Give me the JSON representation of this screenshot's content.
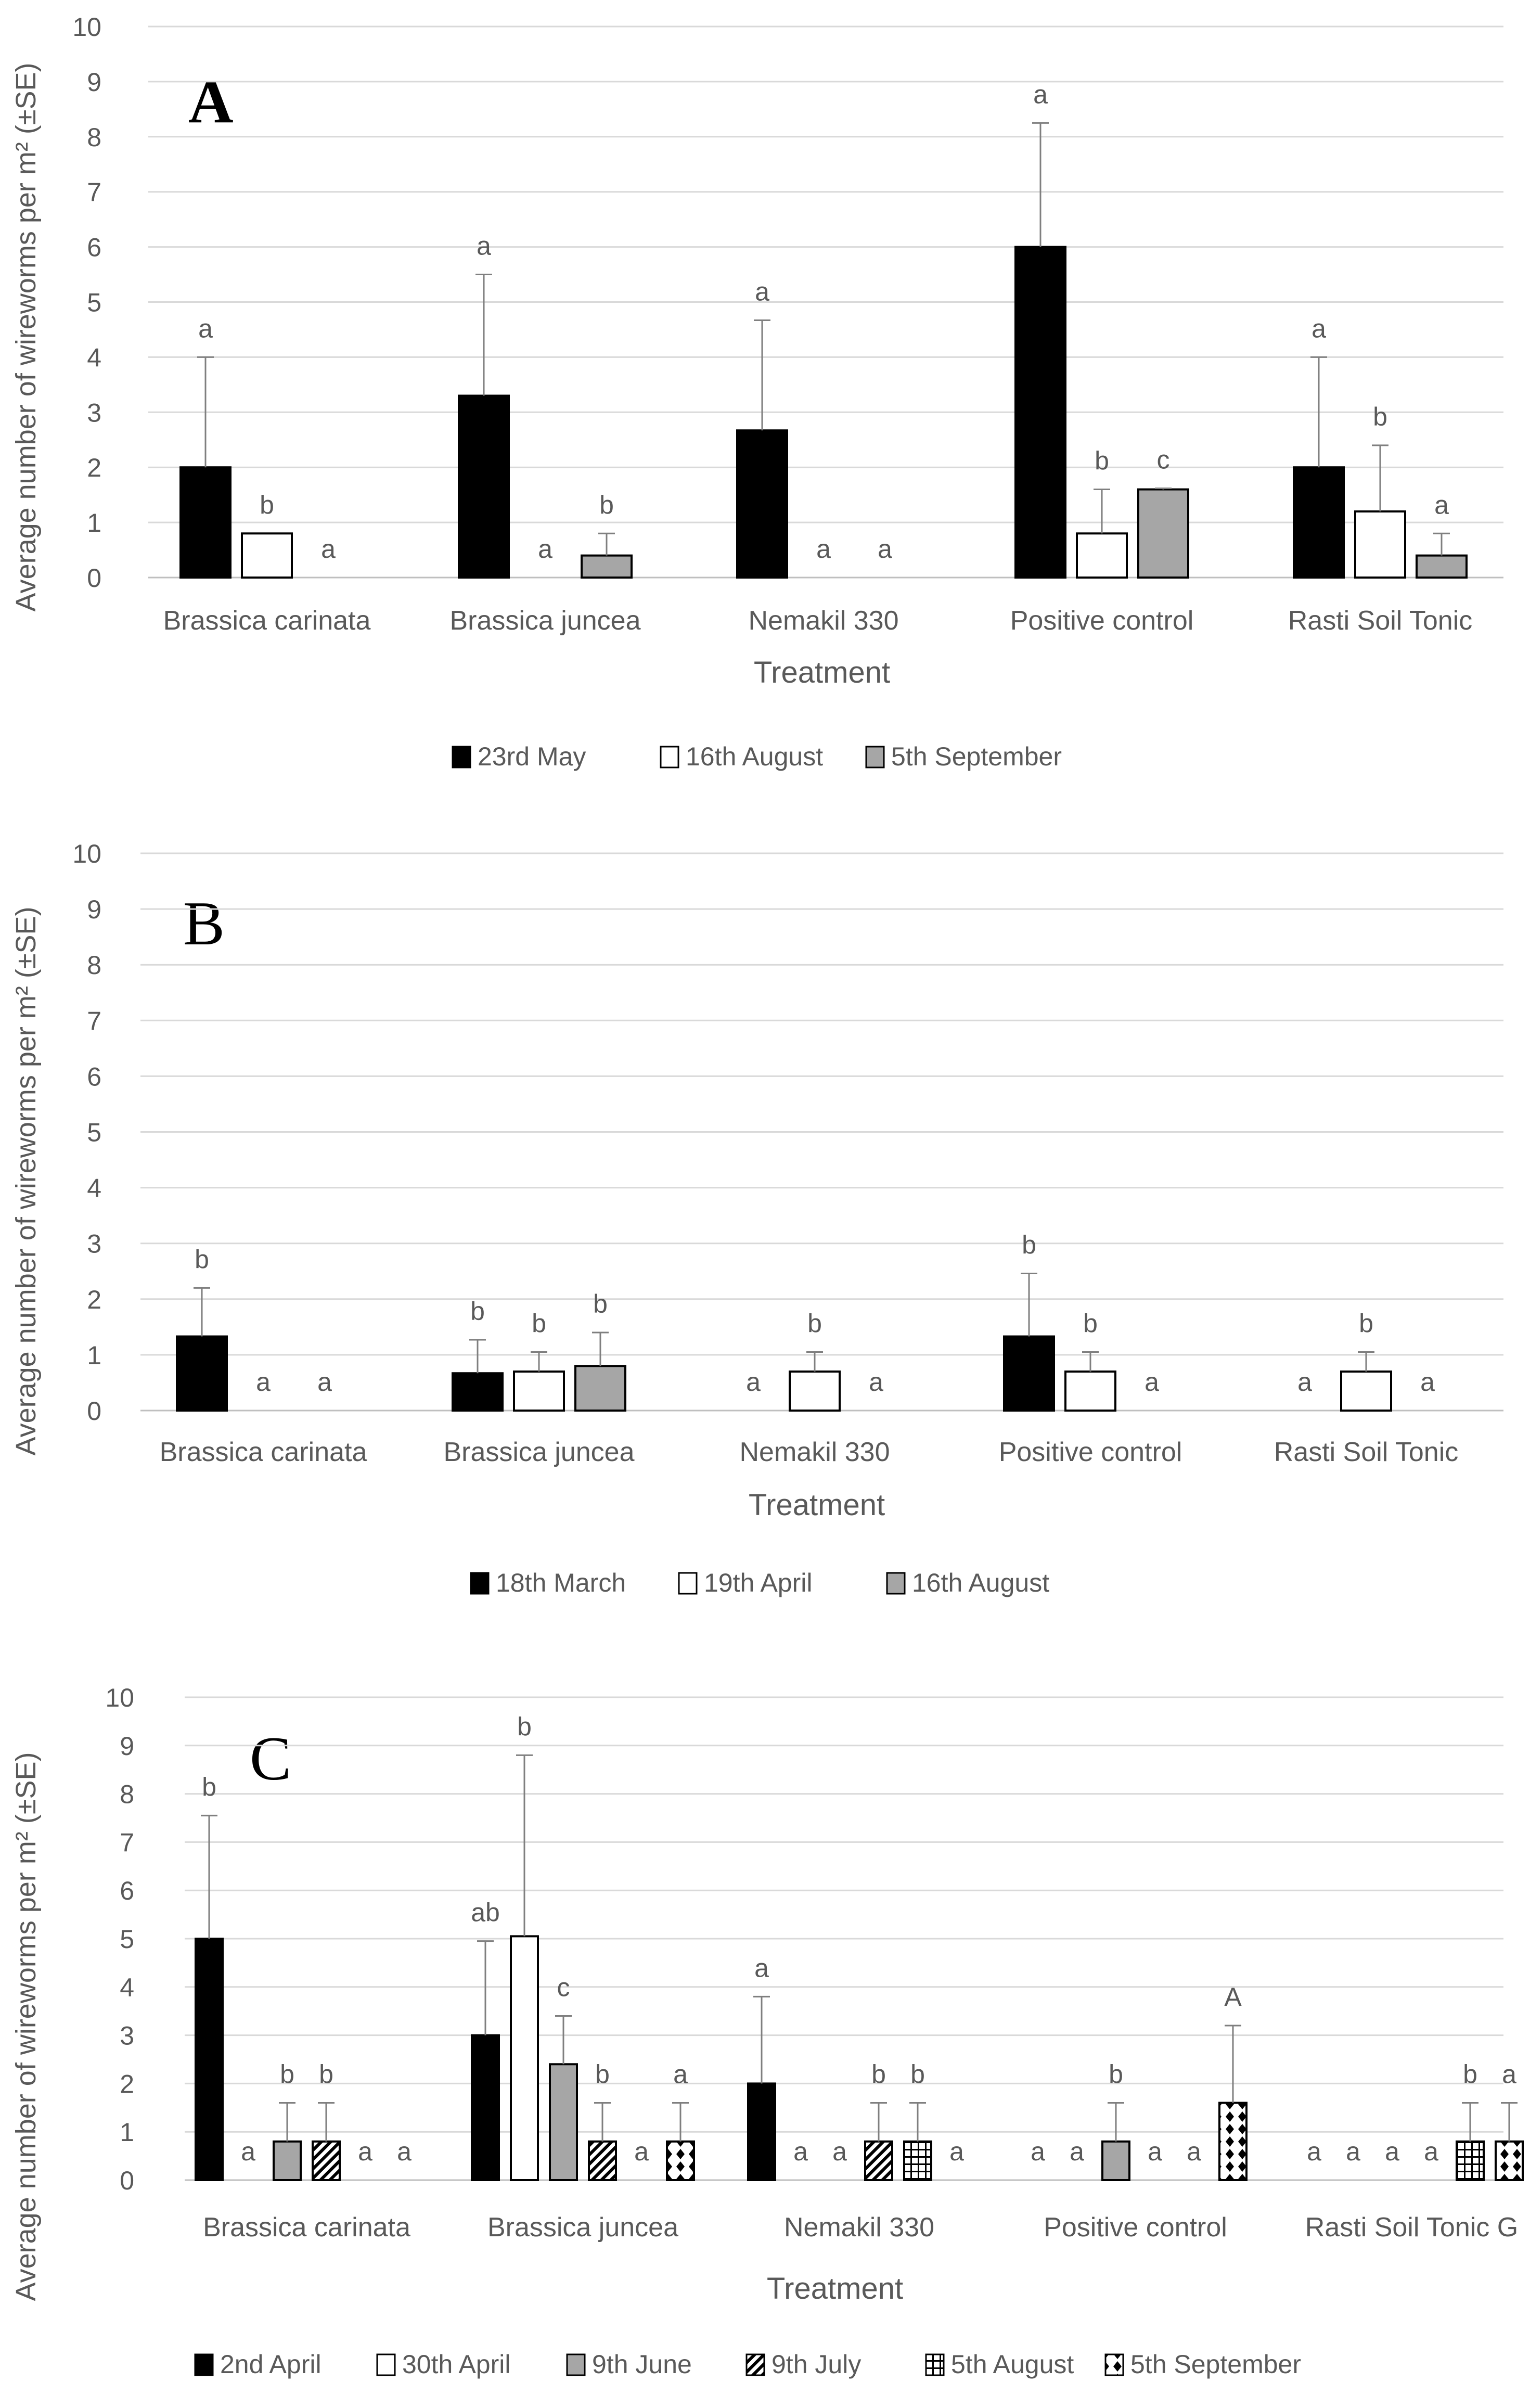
{
  "chart_data": [
    {
      "type": "bar",
      "panel": "A",
      "title": "",
      "ylabel": "Average number of wireworms per m² (±SE)",
      "xlabel": "Treatment",
      "ylim": [
        0,
        10
      ],
      "yticks": [
        "0",
        "1",
        "2",
        "3",
        "4",
        "5",
        "6",
        "7",
        "8",
        "9",
        "10"
      ],
      "categories": [
        "Brassica carinata",
        "Brassica juncea",
        "Nemakil 330",
        "Positive control",
        "Rasti Soil Tonic"
      ],
      "legend_position": "bottom",
      "series": [
        {
          "name": "23rd May",
          "color": "#000000",
          "pattern": "solid",
          "values": [
            2,
            3.3,
            2.67,
            6,
            2
          ],
          "errors": [
            2,
            2.2,
            2,
            2.25,
            2
          ],
          "letters": [
            "a",
            "a",
            "a",
            "a",
            "a"
          ]
        },
        {
          "name": "16th August",
          "color": "#ffffff",
          "pattern": "open",
          "values": [
            0.8,
            0,
            0,
            0.8,
            1.2
          ],
          "errors": [
            0,
            0,
            0,
            0.8,
            1.2
          ],
          "letters": [
            "b",
            "a",
            "a",
            "b",
            "b"
          ]
        },
        {
          "name": "5th September",
          "color": "#a6a6a6",
          "pattern": "solid",
          "values": [
            0,
            0.4,
            0,
            1.6,
            0.4
          ],
          "errors": [
            0,
            0.4,
            0,
            0.02,
            0.4
          ],
          "letters": [
            "a",
            "b",
            "a",
            "c",
            "a"
          ]
        }
      ]
    },
    {
      "type": "bar",
      "panel": "B",
      "title": "",
      "ylabel": "Average number of wireworms per m² (±SE)",
      "xlabel": "Treatment",
      "ylim": [
        0,
        10
      ],
      "yticks": [
        "0",
        "1",
        "2",
        "3",
        "4",
        "5",
        "6",
        "7",
        "8",
        "9",
        "10"
      ],
      "categories": [
        "Brassica carinata",
        "Brassica juncea",
        "Nemakil 330",
        "Positive control",
        "Rasti Soil Tonic"
      ],
      "legend_position": "bottom",
      "series": [
        {
          "name": "18th March",
          "color": "#000000",
          "pattern": "solid",
          "values": [
            1.33,
            0.67,
            0,
            1.33,
            0
          ],
          "errors": [
            0.87,
            0.6,
            0,
            1.13,
            0
          ],
          "letters": [
            "b",
            "b",
            "a",
            "b",
            "a"
          ]
        },
        {
          "name": "19th April",
          "color": "#ffffff",
          "pattern": "open",
          "values": [
            0,
            0.7,
            0.7,
            0.7,
            0.7
          ],
          "errors": [
            0,
            0.35,
            0.35,
            0.35,
            0.35
          ],
          "letters": [
            "a",
            "b",
            "b",
            "b",
            "b"
          ]
        },
        {
          "name": "16th August",
          "color": "#a6a6a6",
          "pattern": "solid",
          "values": [
            0,
            0.8,
            0,
            0,
            0
          ],
          "errors": [
            0,
            0.6,
            0,
            0,
            0
          ],
          "letters": [
            "a",
            "b",
            "a",
            "a",
            "a"
          ]
        }
      ]
    },
    {
      "type": "bar",
      "panel": "C",
      "title": "",
      "ylabel": "Average number of wireworms per m² (±SE)",
      "xlabel": "Treatment",
      "ylim": [
        0,
        10
      ],
      "yticks": [
        "0",
        "1",
        "2",
        "3",
        "4",
        "5",
        "6",
        "7",
        "8",
        "9",
        "10"
      ],
      "categories": [
        "Brassica carinata",
        "Brassica juncea",
        "Nemakil 330",
        "Positive control",
        "Rasti Soil Tonic G"
      ],
      "legend_position": "bottom",
      "series": [
        {
          "name": "2nd April",
          "color": "#000000",
          "pattern": "solid",
          "values": [
            5,
            3,
            2,
            0,
            0
          ],
          "errors": [
            2.55,
            1.95,
            1.8,
            0,
            0
          ],
          "letters": [
            "b",
            "ab",
            "a",
            "a",
            "a"
          ]
        },
        {
          "name": "30th April",
          "color": "#ffffff",
          "pattern": "open",
          "values": [
            0,
            5.05,
            0,
            0,
            0
          ],
          "errors": [
            0,
            3.75,
            0,
            0,
            0
          ],
          "letters": [
            "a",
            "b",
            "a",
            "a",
            "a"
          ]
        },
        {
          "name": "9th June",
          "color": "#a6a6a6",
          "pattern": "solid",
          "values": [
            0.8,
            2.4,
            0,
            0.8,
            0
          ],
          "errors": [
            0.8,
            1.0,
            0,
            0.8,
            0
          ],
          "letters": [
            "b",
            "c",
            "a",
            "b",
            "a"
          ]
        },
        {
          "name": "9th July",
          "color": "#000000",
          "pattern": "diagonal",
          "values": [
            0.8,
            0.8,
            0.8,
            0,
            0
          ],
          "errors": [
            0.8,
            0.8,
            0.8,
            0,
            0
          ],
          "letters": [
            "b",
            "b",
            "b",
            "a",
            "a"
          ]
        },
        {
          "name": "5th August",
          "color": "#000000",
          "pattern": "grid",
          "values": [
            0,
            0,
            0.8,
            0,
            0.8
          ],
          "errors": [
            0,
            0,
            0.8,
            0,
            0.8
          ],
          "letters": [
            "a",
            "a",
            "b",
            "a",
            "b"
          ]
        },
        {
          "name": "5th September",
          "color": "#000000",
          "pattern": "diamond",
          "values": [
            0,
            0.8,
            0,
            1.6,
            0.8
          ],
          "errors": [
            0,
            0.8,
            0,
            1.6,
            0.8
          ],
          "letters": [
            "a",
            "a",
            "a",
            "A",
            "a"
          ]
        }
      ]
    }
  ]
}
